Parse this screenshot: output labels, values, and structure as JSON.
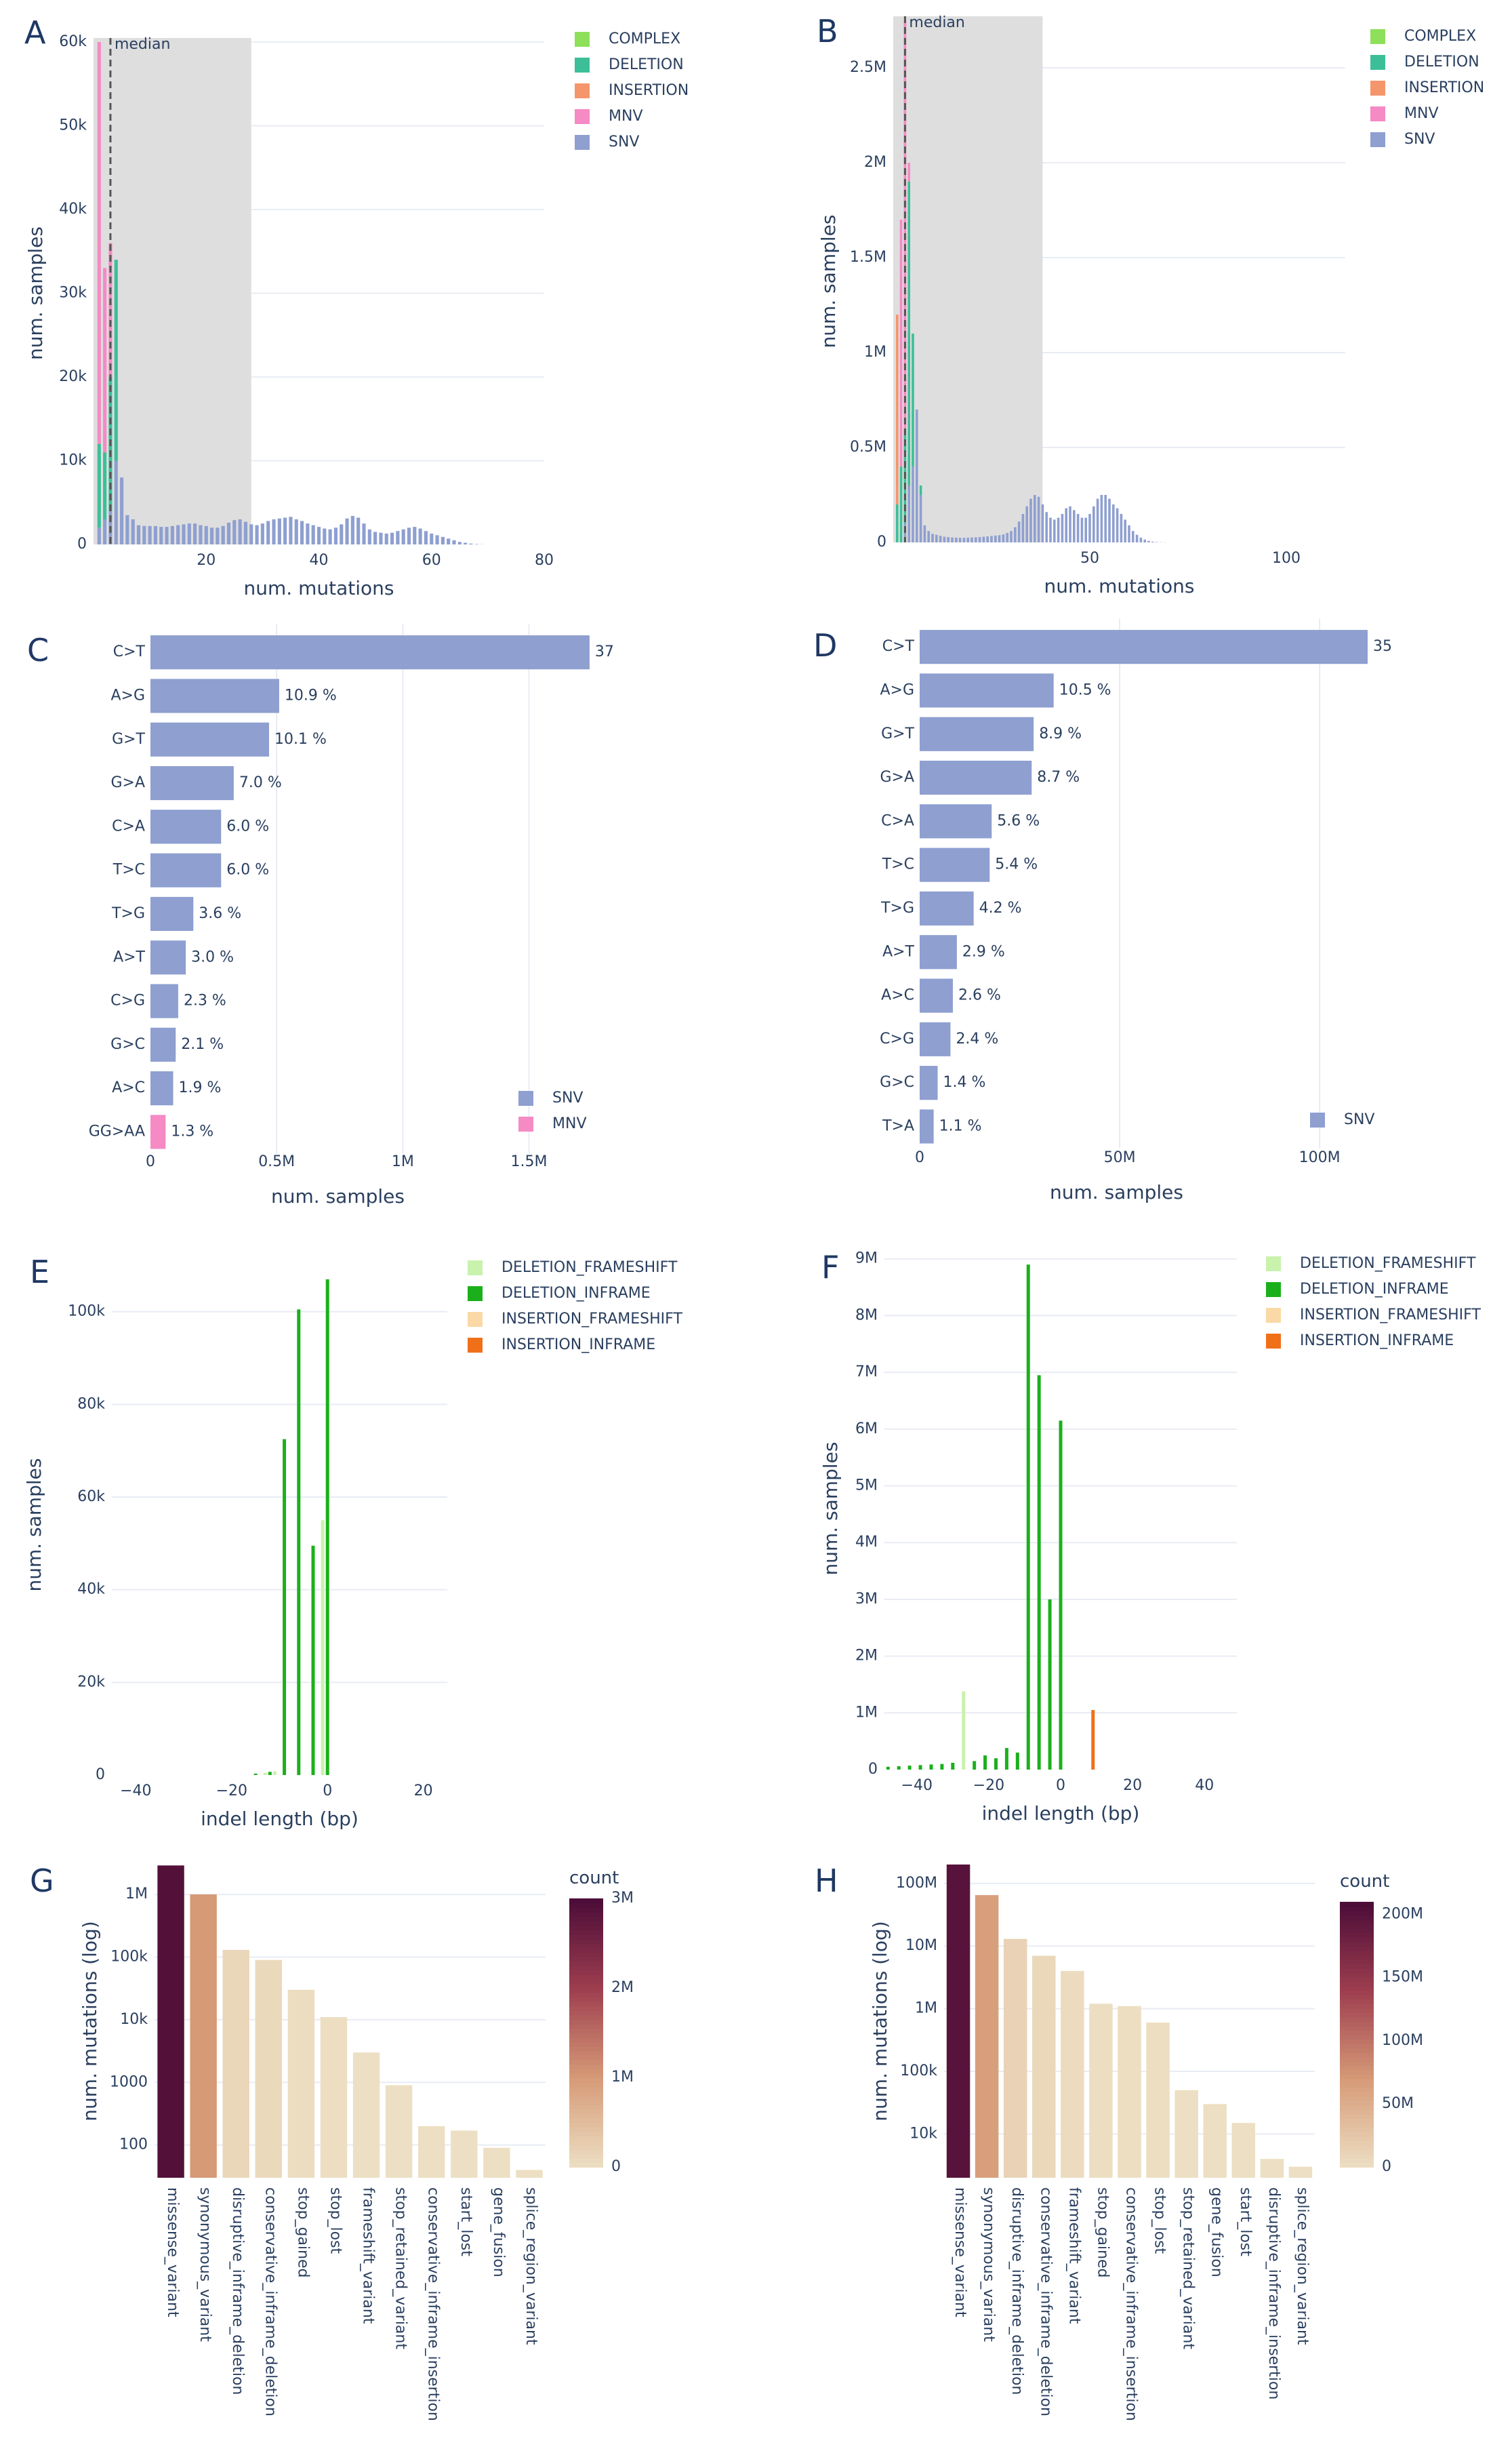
{
  "chart_data": [
    {
      "panel": "A",
      "type": "bar",
      "barmode": "stack",
      "xlabel": "num. mutations",
      "ylabel": "num. samples",
      "xlim": [
        0,
        80
      ],
      "ylim": [
        0,
        60000
      ],
      "xticks": [
        {
          "v": 20,
          "t": "20"
        },
        {
          "v": 40,
          "t": "40"
        },
        {
          "v": 60,
          "t": "60"
        },
        {
          "v": 80,
          "t": "80"
        }
      ],
      "yticks": [
        {
          "v": 0,
          "t": "0"
        },
        {
          "v": 10000,
          "t": "10k"
        },
        {
          "v": 20000,
          "t": "20k"
        },
        {
          "v": 30000,
          "t": "30k"
        },
        {
          "v": 40000,
          "t": "40k"
        },
        {
          "v": 50000,
          "t": "50k"
        },
        {
          "v": 60000,
          "t": "60k"
        }
      ],
      "median": 3,
      "median_label": "median",
      "shaded_range": [
        0,
        28
      ],
      "legend": [
        "COMPLEX",
        "DELETION",
        "INSERTION",
        "MNV",
        "SNV"
      ],
      "legend_position": "top-right",
      "stacked_bars": [
        {
          "x": 1,
          "SNV": 2000,
          "DELETION": 10000,
          "MNV": 48000,
          "COMPLEX": 0,
          "INSERTION": 0
        },
        {
          "x": 2,
          "SNV": 3000,
          "DELETION": 8000,
          "MNV": 22000,
          "COMPLEX": 0,
          "INSERTION": 0
        },
        {
          "x": 3,
          "SNV": 4000,
          "DELETION": 16000,
          "MNV": 16000,
          "COMPLEX": 0,
          "INSERTION": 0
        },
        {
          "x": 4,
          "SNV": 10000,
          "DELETION": 24000,
          "MNV": 0,
          "COMPLEX": 0,
          "INSERTION": 0
        },
        {
          "x": 5,
          "SNV": 8000,
          "DELETION": 0,
          "MNV": 0,
          "COMPLEX": 0,
          "INSERTION": 0
        }
      ],
      "snv_series": {
        "x_start": 6,
        "x_step": 1,
        "values": [
          3500,
          3000,
          2300,
          2200,
          2200,
          2200,
          2100,
          2100,
          2200,
          2300,
          2400,
          2500,
          2500,
          2300,
          2200,
          2000,
          2000,
          2200,
          2600,
          2900,
          3000,
          2700,
          2400,
          2300,
          2500,
          2800,
          3000,
          3100,
          3200,
          3300,
          3000,
          2800,
          2500,
          2300,
          2100,
          1900,
          1800,
          2000,
          2400,
          3100,
          3400,
          3200,
          2500,
          1800,
          1500,
          1400,
          1300,
          1400,
          1600,
          1800,
          2000,
          2100,
          1900,
          1600,
          1300,
          1100,
          900,
          700,
          500,
          300,
          200,
          100,
          50,
          20
        ]
      }
    },
    {
      "panel": "B",
      "type": "bar",
      "barmode": "stack",
      "xlabel": "num. mutations",
      "ylabel": "num. samples",
      "xlim": [
        0,
        115
      ],
      "ylim": [
        0,
        2750000
      ],
      "xticks": [
        {
          "v": 50,
          "t": "50"
        },
        {
          "v": 100,
          "t": "100"
        }
      ],
      "yticks": [
        {
          "v": 0,
          "t": "0"
        },
        {
          "v": 500000,
          "t": "0.5M"
        },
        {
          "v": 1000000,
          "t": "1M"
        },
        {
          "v": 1500000,
          "t": "1.5M"
        },
        {
          "v": 2000000,
          "t": "2M"
        },
        {
          "v": 2500000,
          "t": "2.5M"
        }
      ],
      "median": 3,
      "median_label": "median",
      "shaded_range": [
        0,
        38
      ],
      "legend": [
        "COMPLEX",
        "DELETION",
        "INSERTION",
        "MNV",
        "SNV"
      ],
      "legend_position": "top-right",
      "stacked_bars": [
        {
          "x": 1,
          "SNV": 0,
          "DELETION": 200000,
          "INSERTION": 1000000,
          "MNV": 0,
          "COMPLEX": 0
        },
        {
          "x": 2,
          "SNV": 0,
          "DELETION": 400000,
          "INSERTION": 0,
          "MNV": 1300000,
          "COMPLEX": 0
        },
        {
          "x": 3,
          "SNV": 100000,
          "DELETION": 500000,
          "INSERTION": 0,
          "MNV": 2150000,
          "COMPLEX": 0
        },
        {
          "x": 4,
          "SNV": 300000,
          "DELETION": 1600000,
          "INSERTION": 0,
          "MNV": 100000,
          "COMPLEX": 0
        },
        {
          "x": 5,
          "SNV": 400000,
          "DELETION": 700000,
          "INSERTION": 0,
          "MNV": 0,
          "COMPLEX": 0
        },
        {
          "x": 6,
          "SNV": 700000,
          "DELETION": 0,
          "INSERTION": 0,
          "MNV": 0,
          "COMPLEX": 0
        },
        {
          "x": 7,
          "SNV": 250000,
          "DELETION": 50000,
          "INSERTION": 0,
          "MNV": 0,
          "COMPLEX": 0
        }
      ],
      "snv_series": {
        "x_start": 8,
        "x_step": 1,
        "values": [
          90000,
          60000,
          45000,
          40000,
          35000,
          30000,
          28000,
          26000,
          25000,
          24000,
          24000,
          25000,
          26000,
          27000,
          28000,
          30000,
          32000,
          34000,
          36000,
          38000,
          42000,
          50000,
          60000,
          80000,
          110000,
          150000,
          190000,
          230000,
          250000,
          240000,
          200000,
          160000,
          130000,
          120000,
          130000,
          150000,
          180000,
          190000,
          170000,
          150000,
          130000,
          130000,
          150000,
          190000,
          230000,
          250000,
          250000,
          230000,
          200000,
          180000,
          150000,
          120000,
          90000,
          60000,
          40000,
          25000,
          15000,
          8000,
          4000,
          2000,
          1000,
          500
        ]
      }
    },
    {
      "panel": "C",
      "type": "bar",
      "orientation": "horizontal",
      "xlabel": "num. samples",
      "ylabel": "",
      "xlim": [
        0,
        1700000
      ],
      "xticks": [
        {
          "v": 0,
          "t": "0"
        },
        {
          "v": 500000,
          "t": "0.5M"
        },
        {
          "v": 1000000,
          "t": "1M"
        },
        {
          "v": 1500000,
          "t": "1.5M"
        }
      ],
      "legend": [
        "SNV",
        "MNV"
      ],
      "legend_position": "bottom-right",
      "categories": [
        "C>T",
        "A>G",
        "G>T",
        "G>A",
        "C>A",
        "T>C",
        "T>G",
        "A>T",
        "C>G",
        "G>C",
        "A>C",
        "GG>AA"
      ],
      "values": [
        1740000,
        510000,
        470000,
        330000,
        280000,
        280000,
        170000,
        140000,
        110000,
        100000,
        90000,
        60000
      ],
      "labels": [
        "37",
        "10.9 %",
        "10.1 %",
        "7.0 %",
        "6.0 %",
        "6.0 %",
        "3.6 %",
        "3.0 %",
        "2.3 %",
        "2.1 %",
        "1.9 %",
        "1.3 %"
      ],
      "series_of": [
        "SNV",
        "SNV",
        "SNV",
        "SNV",
        "SNV",
        "SNV",
        "SNV",
        "SNV",
        "SNV",
        "SNV",
        "SNV",
        "MNV"
      ]
    },
    {
      "panel": "D",
      "type": "bar",
      "orientation": "horizontal",
      "xlabel": "num. samples",
      "ylabel": "",
      "xlim": [
        0,
        112000000
      ],
      "xticks": [
        {
          "v": 0,
          "t": "0"
        },
        {
          "v": 50000000,
          "t": "50M"
        },
        {
          "v": 100000000,
          "t": "100M"
        }
      ],
      "legend": [
        "SNV"
      ],
      "legend_position": "bottom-right",
      "categories": [
        "C>T",
        "A>G",
        "G>T",
        "G>A",
        "C>A",
        "T>C",
        "T>G",
        "A>T",
        "A>C",
        "C>G",
        "G>C",
        "T>A"
      ],
      "values": [
        112000000,
        33500000,
        28500000,
        28000000,
        18000000,
        17500000,
        13500000,
        9300000,
        8300000,
        7700000,
        4500000,
        3500000
      ],
      "labels": [
        "35",
        "10.5 %",
        "8.9 %",
        "8.7 %",
        "5.6 %",
        "5.4 %",
        "4.2 %",
        "2.9 %",
        "2.6 %",
        "2.4 %",
        "1.4 %",
        "1.1 %"
      ],
      "series_of": [
        "SNV",
        "SNV",
        "SNV",
        "SNV",
        "SNV",
        "SNV",
        "SNV",
        "SNV",
        "SNV",
        "SNV",
        "SNV",
        "SNV"
      ]
    },
    {
      "panel": "E",
      "type": "bar",
      "xlabel": "indel length (bp)",
      "ylabel": "num. samples",
      "xlim": [
        -45,
        25
      ],
      "ylim": [
        0,
        108000
      ],
      "xticks": [
        {
          "v": -40,
          "t": "−40"
        },
        {
          "v": -20,
          "t": "−20"
        },
        {
          "v": 0,
          "t": "0"
        },
        {
          "v": 20,
          "t": "20"
        }
      ],
      "yticks": [
        {
          "v": 0,
          "t": "0"
        },
        {
          "v": 20000,
          "t": "20k"
        },
        {
          "v": 40000,
          "t": "40k"
        },
        {
          "v": 60000,
          "t": "60k"
        },
        {
          "v": 80000,
          "t": "80k"
        },
        {
          "v": 100000,
          "t": "100k"
        }
      ],
      "legend": [
        "DELETION_FRAMESHIFT",
        "DELETION_INFRAME",
        "INSERTION_FRAMESHIFT",
        "INSERTION_INFRAME"
      ],
      "legend_position": "top-right",
      "bars": [
        {
          "x": -15,
          "y": 300,
          "s": "DELETION_INFRAME"
        },
        {
          "x": -13,
          "y": 500,
          "s": "DELETION_FRAMESHIFT"
        },
        {
          "x": -12,
          "y": 700,
          "s": "DELETION_INFRAME"
        },
        {
          "x": -11,
          "y": 800,
          "s": "DELETION_FRAMESHIFT"
        },
        {
          "x": -9,
          "y": 72500,
          "s": "DELETION_INFRAME"
        },
        {
          "x": -6,
          "y": 100500,
          "s": "DELETION_INFRAME"
        },
        {
          "x": -3,
          "y": 49500,
          "s": "DELETION_INFRAME"
        },
        {
          "x": -1,
          "y": 55000,
          "s": "DELETION_FRAMESHIFT"
        },
        {
          "x": 0,
          "y": 107000,
          "s": "DELETION_INFRAME"
        }
      ]
    },
    {
      "panel": "F",
      "type": "bar",
      "xlabel": "indel length (bp)",
      "ylabel": "num. samples",
      "xlim": [
        -49,
        49
      ],
      "ylim": [
        0,
        9200000
      ],
      "xticks": [
        {
          "v": -40,
          "t": "−40"
        },
        {
          "v": -20,
          "t": "−20"
        },
        {
          "v": 0,
          "t": "0"
        },
        {
          "v": 20,
          "t": "20"
        },
        {
          "v": 40,
          "t": "40"
        }
      ],
      "yticks": [
        {
          "v": 0,
          "t": "0"
        },
        {
          "v": 1000000,
          "t": "1M"
        },
        {
          "v": 2000000,
          "t": "2M"
        },
        {
          "v": 3000000,
          "t": "3M"
        },
        {
          "v": 4000000,
          "t": "4M"
        },
        {
          "v": 5000000,
          "t": "5M"
        },
        {
          "v": 6000000,
          "t": "6M"
        },
        {
          "v": 7000000,
          "t": "7M"
        },
        {
          "v": 8000000,
          "t": "8M"
        },
        {
          "v": 9000000,
          "t": "9M"
        }
      ],
      "legend": [
        "DELETION_FRAMESHIFT",
        "DELETION_INFRAME",
        "INSERTION_FRAMESHIFT",
        "INSERTION_INFRAME"
      ],
      "legend_position": "top-right",
      "bars": [
        {
          "x": -48,
          "y": 50000,
          "s": "DELETION_INFRAME"
        },
        {
          "x": -45,
          "y": 60000,
          "s": "DELETION_INFRAME"
        },
        {
          "x": -42,
          "y": 70000,
          "s": "DELETION_INFRAME"
        },
        {
          "x": -39,
          "y": 80000,
          "s": "DELETION_INFRAME"
        },
        {
          "x": -36,
          "y": 90000,
          "s": "DELETION_INFRAME"
        },
        {
          "x": -33,
          "y": 100000,
          "s": "DELETION_INFRAME"
        },
        {
          "x": -30,
          "y": 120000,
          "s": "DELETION_INFRAME"
        },
        {
          "x": -27,
          "y": 1380000,
          "s": "DELETION_FRAMESHIFT"
        },
        {
          "x": -24,
          "y": 150000,
          "s": "DELETION_INFRAME"
        },
        {
          "x": -21,
          "y": 250000,
          "s": "DELETION_INFRAME"
        },
        {
          "x": -18,
          "y": 200000,
          "s": "DELETION_INFRAME"
        },
        {
          "x": -15,
          "y": 380000,
          "s": "DELETION_INFRAME"
        },
        {
          "x": -12,
          "y": 300000,
          "s": "DELETION_INFRAME"
        },
        {
          "x": -9,
          "y": 8900000,
          "s": "DELETION_INFRAME"
        },
        {
          "x": -6,
          "y": 6950000,
          "s": "DELETION_INFRAME"
        },
        {
          "x": -3,
          "y": 3000000,
          "s": "DELETION_INFRAME"
        },
        {
          "x": 0,
          "y": 6150000,
          "s": "DELETION_INFRAME"
        },
        {
          "x": 9,
          "y": 1050000,
          "s": "INSERTION_INFRAME"
        }
      ]
    },
    {
      "panel": "G",
      "type": "bar",
      "yscale": "log",
      "xlabel": "",
      "ylabel": "num. mutations (log)",
      "ylim": [
        30,
        3000000
      ],
      "yticks": [
        {
          "v": 100,
          "t": "100"
        },
        {
          "v": 1000,
          "t": "1000"
        },
        {
          "v": 10000,
          "t": "10k"
        },
        {
          "v": 100000,
          "t": "100k"
        },
        {
          "v": 1000000,
          "t": "1M"
        }
      ],
      "colorbar_title": "count",
      "colorbar_max": 3000000,
      "colorbar_ticks": [
        {
          "v": 0,
          "t": "0"
        },
        {
          "v": 1000000,
          "t": "1M"
        },
        {
          "v": 2000000,
          "t": "2M"
        },
        {
          "v": 3000000,
          "t": "3M"
        }
      ],
      "categories": [
        "missense_variant",
        "synonymous_variant",
        "disruptive_inframe_deletion",
        "conservative_inframe_deletion",
        "stop_gained",
        "stop_lost",
        "frameshift_variant",
        "stop_retained_variant",
        "conservative_inframe_insertion",
        "start_lost",
        "gene_fusion",
        "splice_region_variant"
      ],
      "values": [
        2900000,
        1000000,
        130000,
        90000,
        30000,
        11000,
        3000,
        900,
        200,
        170,
        90,
        40
      ]
    },
    {
      "panel": "H",
      "type": "bar",
      "yscale": "log",
      "xlabel": "",
      "ylabel": "num. mutations (log)",
      "ylim": [
        2000,
        200000000
      ],
      "yticks": [
        {
          "v": 10000,
          "t": "10k"
        },
        {
          "v": 100000,
          "t": "100k"
        },
        {
          "v": 1000000,
          "t": "1M"
        },
        {
          "v": 10000000,
          "t": "10M"
        },
        {
          "v": 100000000,
          "t": "100M"
        }
      ],
      "colorbar_title": "count",
      "colorbar_max": 210000000,
      "colorbar_ticks": [
        {
          "v": 0,
          "t": "0"
        },
        {
          "v": 50000000,
          "t": "50M"
        },
        {
          "v": 100000000,
          "t": "100M"
        },
        {
          "v": 150000000,
          "t": "150M"
        },
        {
          "v": 200000000,
          "t": "200M"
        }
      ],
      "categories": [
        "missense_variant",
        "synonymous_variant",
        "disruptive_inframe_deletion",
        "conservative_inframe_deletion",
        "frameshift_variant",
        "stop_gained",
        "conservative_inframe_insertion",
        "stop_lost",
        "stop_retained_variant",
        "gene_fusion",
        "start_lost",
        "disruptive_inframe_insertion",
        "splice_region_variant"
      ],
      "values": [
        200000000,
        65000000,
        13000000,
        7000000,
        4000000,
        1200000,
        1100000,
        600000,
        50000,
        30000,
        15000,
        4000,
        3000
      ]
    }
  ],
  "colors": {
    "COMPLEX": "#8ee05a",
    "DELETION": "#3cbf98",
    "INSERTION": "#f5956b",
    "MNV": "#f58ac4",
    "SNV": "#8e9fd0",
    "DELETION_FRAMESHIFT": "#c9f2ad",
    "DELETION_INFRAME": "#1bb01b",
    "INSERTION_FRAMESHIFT": "#fad9a6",
    "INSERTION_INFRAME": "#f0701a",
    "grid": "#e8ecf3",
    "axis_text": "#2a3f5f",
    "shade": "#dedede",
    "colorscale": [
      "#eddfc3",
      "#d69a77",
      "#9e3e4f",
      "#4b0c38"
    ]
  }
}
